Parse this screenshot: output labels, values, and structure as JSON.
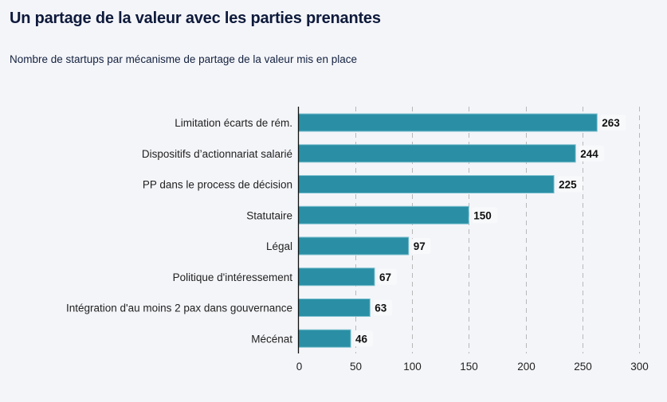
{
  "header": {
    "title": "Un partage de la valeur avec les parties prenantes",
    "subtitle": "Nombre de startups par mécanisme de partage de la valeur mis en place"
  },
  "colors": {
    "bar": "#2a8fa5",
    "bar_border": "#7cc0cf",
    "grid": "#b8b8b8",
    "axis": "#111111",
    "background": "#f4f5f9"
  },
  "chart_data": {
    "type": "bar",
    "orientation": "horizontal",
    "title": "Un partage de la valeur avec les parties prenantes",
    "subtitle": "Nombre de startups par mécanisme de partage de la valeur mis en place",
    "xlabel": "",
    "ylabel": "",
    "categories": [
      "Limitation écarts de rém.",
      "Dispositifs d’actionnariat salarié",
      "PP dans le process de décision",
      "Statutaire",
      "Légal",
      "Politique d'intéressement",
      "Intégration d'au moins 2 pax dans gouvernance",
      "Mécénat"
    ],
    "values": [
      263,
      244,
      225,
      150,
      97,
      67,
      63,
      46
    ],
    "data_labels": [
      "263",
      "244",
      "225",
      "150",
      "97",
      "67",
      "63",
      "46"
    ],
    "xlim": [
      0,
      300
    ],
    "xticks": [
      0,
      50,
      100,
      150,
      200,
      250,
      300
    ],
    "xtick_labels": [
      "0",
      "50",
      "100",
      "150",
      "200",
      "250",
      "300"
    ],
    "grid": "vertical dashed",
    "legend": "none"
  }
}
